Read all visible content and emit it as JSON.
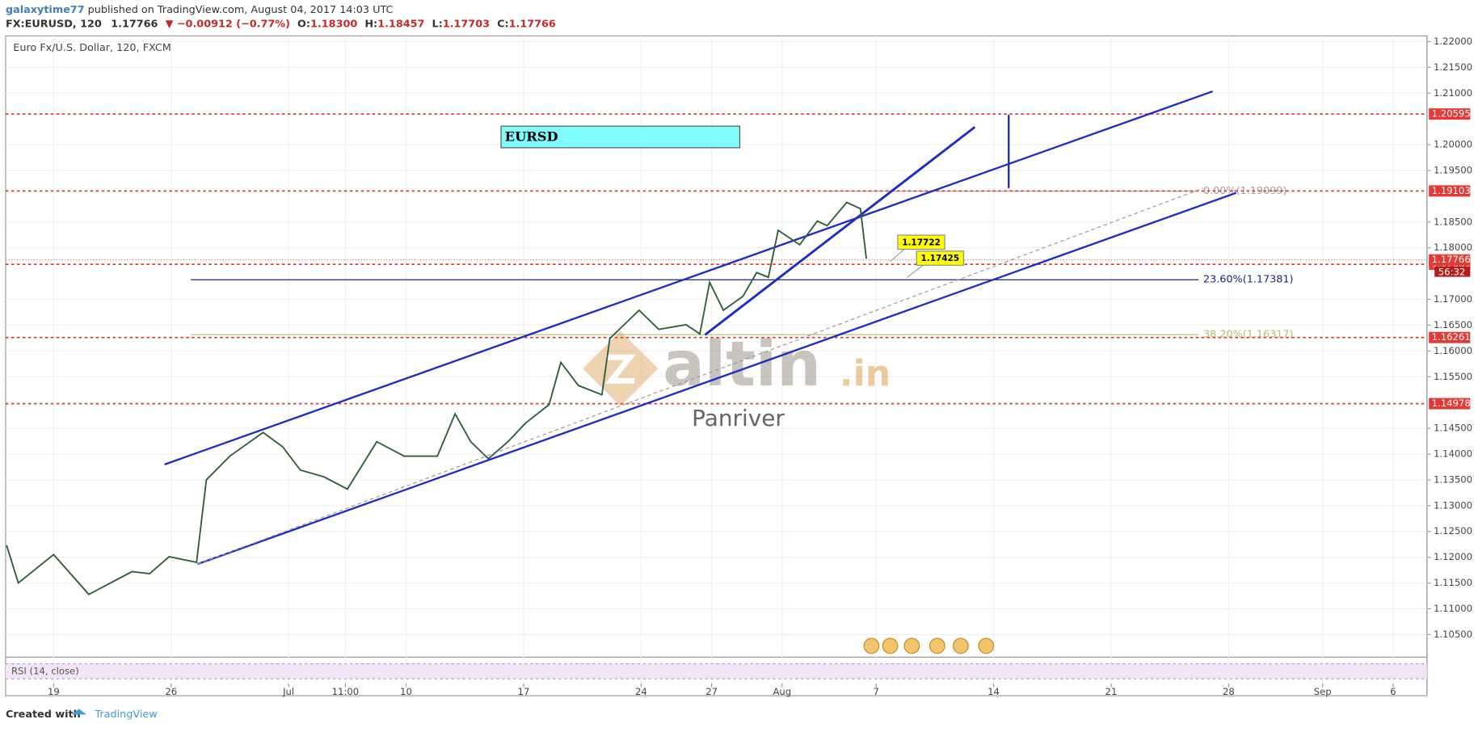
{
  "header": {
    "author": "galaxytime77",
    "published": "published on TradingView.com, August 04, 2017 14:03 UTC",
    "symbol": "FX:EURUSD, 120",
    "last": "1.17766",
    "change": "▼ −0.00912 (−0.77%)",
    "ohlc": [
      {
        "key": "O:",
        "val": "1.18300"
      },
      {
        "key": "H:",
        "val": "1.18457"
      },
      {
        "key": "L:",
        "val": "1.17703"
      },
      {
        "key": "C:",
        "val": "1.17766"
      }
    ]
  },
  "chart_data": {
    "type": "line",
    "title": "Euro Fx/U.S. Dollar, 120, FXCM",
    "color": "#2f5d3a",
    "x": [
      -24,
      -18,
      0,
      18,
      40,
      49,
      59,
      73,
      78,
      90,
      107,
      117,
      126,
      138,
      150,
      165,
      179,
      196,
      205,
      213,
      222,
      232,
      241,
      253,
      259,
      268,
      280,
      284,
      299,
      309,
      323,
      330,
      335,
      342,
      352,
      359,
      365,
      370,
      381,
      390,
      395,
      405,
      412,
      415
    ],
    "values": [
      1.1223,
      1.115,
      1.1205,
      1.1128,
      1.1172,
      1.1168,
      1.1201,
      1.119,
      1.135,
      1.1396,
      1.1442,
      1.1414,
      1.1369,
      1.1356,
      1.1332,
      1.1424,
      1.1396,
      1.1396,
      1.1478,
      1.1424,
      1.1391,
      1.1424,
      1.146,
      1.1496,
      1.1578,
      1.1533,
      1.1515,
      1.1624,
      1.1679,
      1.1642,
      1.1651,
      1.1633,
      1.1733,
      1.1679,
      1.1706,
      1.1752,
      1.1743,
      1.1834,
      1.1806,
      1.1852,
      1.1843,
      1.1888,
      1.1876,
      1.1779
    ],
    "xlim": [
      -24.5,
      701.3
    ],
    "ylim": [
      1.1008,
      1.2211
    ],
    "xticks": [
      {
        "value": 0,
        "label": "19"
      },
      {
        "value": 60,
        "label": "26"
      },
      {
        "value": 120,
        "label": "Jul"
      },
      {
        "value": 149,
        "label": "11:00"
      },
      {
        "value": 180,
        "label": "10"
      },
      {
        "value": 240,
        "label": "17"
      },
      {
        "value": 300,
        "label": "24"
      },
      {
        "value": 336,
        "label": "27"
      },
      {
        "value": 372,
        "label": "Aug"
      },
      {
        "value": 420,
        "label": "7"
      },
      {
        "value": 480,
        "label": "14"
      },
      {
        "value": 540,
        "label": "21"
      },
      {
        "value": 600,
        "label": "28"
      },
      {
        "value": 648,
        "label": "Sep"
      },
      {
        "value": 684,
        "label": "6"
      }
    ],
    "yticks": [
      {
        "value": 1.22,
        "label": "1.22000"
      },
      {
        "value": 1.215,
        "label": "1.21500"
      },
      {
        "value": 1.21,
        "label": "1.21000"
      },
      {
        "value": 1.2,
        "label": "1.20000"
      },
      {
        "value": 1.195,
        "label": "1.19500"
      },
      {
        "value": 1.185,
        "label": "1.18500"
      },
      {
        "value": 1.18,
        "label": "1.18000"
      },
      {
        "value": 1.17,
        "label": "1.17000"
      },
      {
        "value": 1.165,
        "label": "1.16500"
      },
      {
        "value": 1.16,
        "label": "1.16000"
      },
      {
        "value": 1.155,
        "label": "1.15500"
      },
      {
        "value": 1.145,
        "label": "1.14500"
      },
      {
        "value": 1.14,
        "label": "1.14000"
      },
      {
        "value": 1.135,
        "label": "1.13500"
      },
      {
        "value": 1.13,
        "label": "1.13000"
      },
      {
        "value": 1.125,
        "label": "1.12500"
      },
      {
        "value": 1.12,
        "label": "1.12000"
      },
      {
        "value": 1.115,
        "label": "1.11500"
      },
      {
        "value": 1.11,
        "label": "1.11000"
      },
      {
        "value": 1.105,
        "label": "1.10500"
      }
    ],
    "grid": true,
    "levels": [
      1.20595,
      1.19103,
      1.17681,
      1.16261,
      1.14978
    ],
    "level_color": "#e53935",
    "current": {
      "value": 1.17766,
      "timer": "56:32"
    },
    "fib": [
      {
        "value": 1.19099,
        "label": "0.00%(1.19099)",
        "color": "#9e9e9e"
      },
      {
        "value": 1.17381,
        "label": "23.60%(1.17381)",
        "color": "#1a237e"
      },
      {
        "value": 1.16317,
        "label": "38.20%(1.16317)",
        "color": "#b5bf63"
      }
    ],
    "callouts": [
      1.17722,
      1.17425
    ],
    "box_label": "EURSD",
    "rsi_label": "RSI (14, close)"
  },
  "watermark": {
    "brand": "altin",
    "tld": ".in",
    "user": "Panriver"
  },
  "footer": {
    "created": "Created with",
    "brand": "TradingView"
  }
}
